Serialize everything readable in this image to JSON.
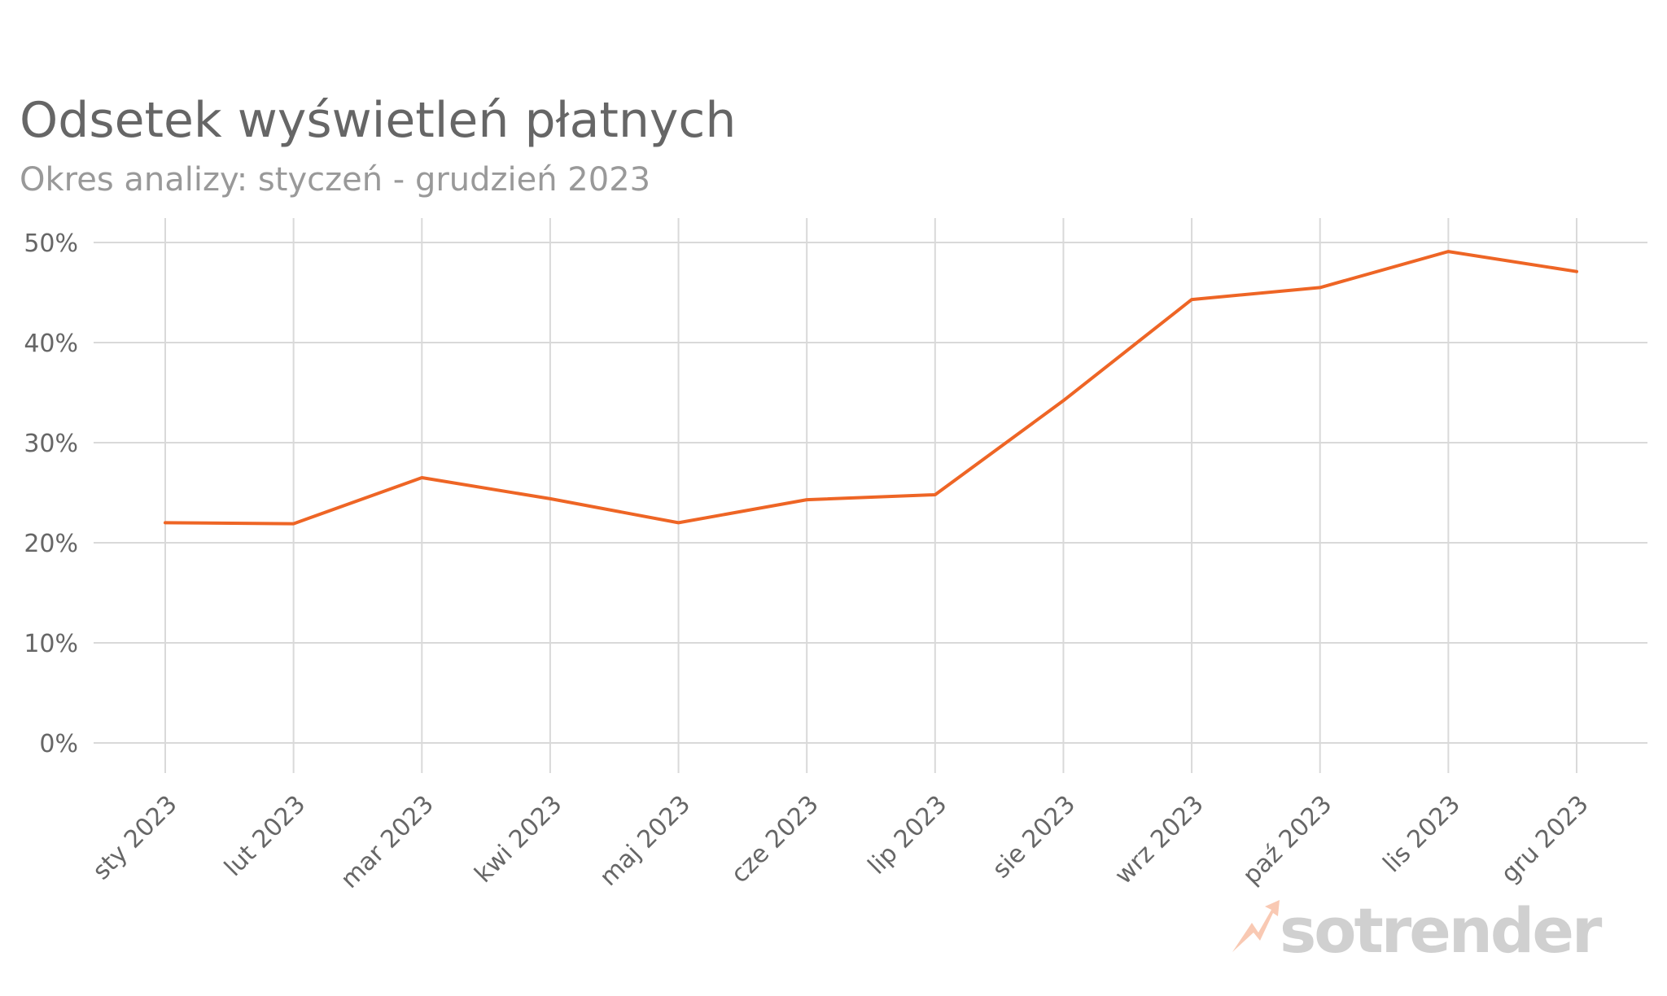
{
  "title": "Odsetek wyświetleń płatnych",
  "subtitle": "Okres analizy: styczeń - grudzień 2023",
  "logo": {
    "text": "sotrender"
  },
  "colors": {
    "line": "#ee6525",
    "grid": "#d9d9d9",
    "title": "#666666",
    "subtitle": "#999999",
    "logo": "#d0d0d0",
    "logo_mark": "#f9c9b3"
  },
  "chart_data": {
    "type": "line",
    "title": "Odsetek wyświetleń płatnych",
    "subtitle": "Okres analizy: styczeń - grudzień 2023",
    "xlabel": "",
    "ylabel": "",
    "categories": [
      "sty 2023",
      "lut 2023",
      "mar 2023",
      "kwi 2023",
      "maj 2023",
      "cze 2023",
      "lip 2023",
      "sie 2023",
      "wrz 2023",
      "paź 2023",
      "lis 2023",
      "gru 2023"
    ],
    "series": [
      {
        "values": [
          22.0,
          21.9,
          26.5,
          24.4,
          22.0,
          24.3,
          24.8,
          34.2,
          44.3,
          45.5,
          49.1,
          47.1
        ]
      }
    ],
    "ylim": [
      0,
      50
    ],
    "yticks": [
      0,
      10,
      20,
      30,
      40,
      50
    ],
    "ytick_labels": [
      "0%",
      "10%",
      "20%",
      "30%",
      "40%",
      "50%"
    ],
    "grid": true,
    "legend": "none"
  }
}
